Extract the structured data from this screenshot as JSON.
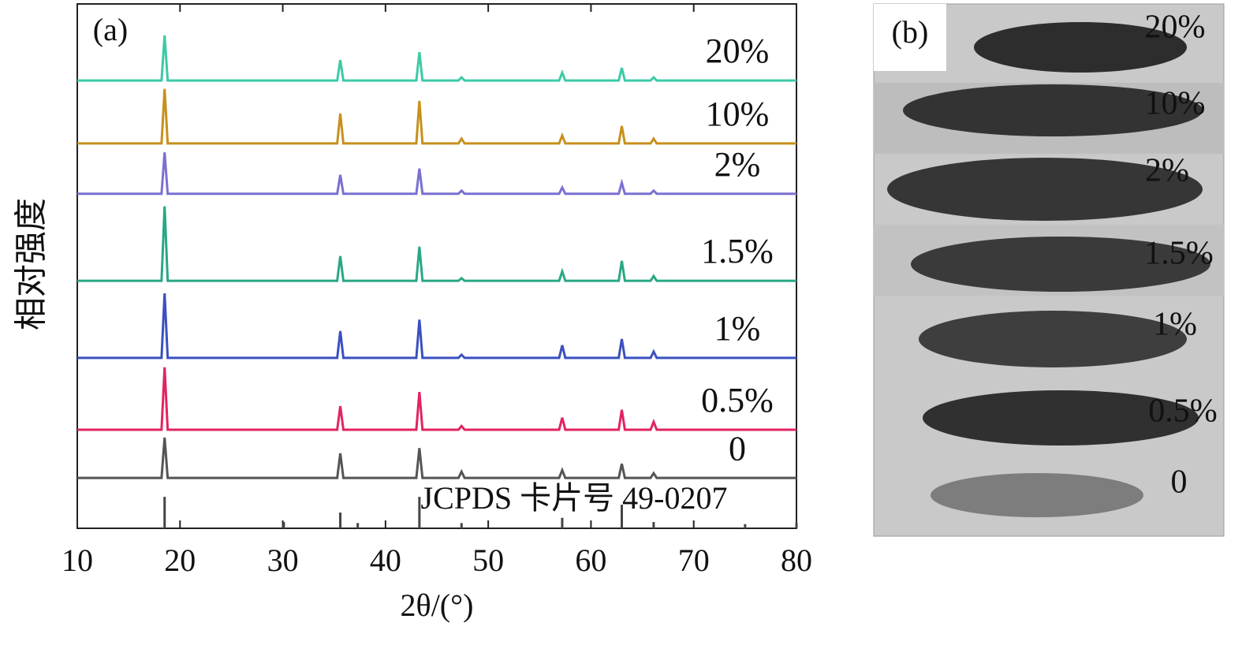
{
  "chart_data": {
    "type": "line",
    "panel_label": "(a)",
    "ylabel": "相对强度",
    "xlabel": "2θ/(°)",
    "xlim": [
      10,
      80
    ],
    "xticks": [
      10,
      20,
      30,
      40,
      50,
      60,
      70,
      80
    ],
    "ylim": [
      0,
      100
    ],
    "x": [
      10,
      18.2,
      18.5,
      18.8,
      35.3,
      35.6,
      35.9,
      43.0,
      43.3,
      43.6,
      47.1,
      47.4,
      47.7,
      56.9,
      57.2,
      57.5,
      62.7,
      63.0,
      63.3,
      65.8,
      66.1,
      66.4,
      80
    ],
    "series": [
      {
        "name": "20%",
        "color": "#3ec9a7",
        "values": [
          85.4,
          85.4,
          94.0,
          85.4,
          85.4,
          89.3,
          85.4,
          85.4,
          90.8,
          85.4,
          85.4,
          86.0,
          85.4,
          85.4,
          86.9,
          85.4,
          85.4,
          87.8,
          85.4,
          85.4,
          86.0,
          85.4,
          85.4
        ]
      },
      {
        "name": "10%",
        "color": "#c8901c",
        "values": [
          73.4,
          73.4,
          83.8,
          73.4,
          73.4,
          79.1,
          73.4,
          73.4,
          81.5,
          73.4,
          73.4,
          74.3,
          73.4,
          73.4,
          74.9,
          73.4,
          73.4,
          76.7,
          73.4,
          73.4,
          74.3,
          73.4,
          73.4
        ]
      },
      {
        "name": "2%",
        "color": "#7a70d2",
        "values": [
          63.8,
          63.8,
          71.7,
          63.8,
          63.8,
          67.4,
          63.8,
          63.8,
          68.6,
          63.8,
          63.8,
          64.4,
          63.8,
          63.8,
          65.0,
          63.8,
          63.8,
          65.9,
          63.8,
          63.8,
          64.4,
          63.8,
          63.8
        ]
      },
      {
        "name": "1.5%",
        "color": "#2aa785",
        "values": [
          47.2,
          47.2,
          61.4,
          47.2,
          47.2,
          51.9,
          47.2,
          47.2,
          53.7,
          47.2,
          47.2,
          47.7,
          47.2,
          47.2,
          49.0,
          47.2,
          47.2,
          51.0,
          47.2,
          47.2,
          48.1,
          47.2,
          47.2
        ]
      },
      {
        "name": "1%",
        "color": "#3b50c0",
        "values": [
          32.5,
          32.5,
          44.8,
          32.5,
          32.5,
          37.6,
          32.5,
          32.5,
          39.8,
          32.5,
          32.5,
          33.1,
          32.5,
          32.5,
          34.9,
          32.5,
          32.5,
          36.1,
          32.5,
          32.5,
          33.7,
          32.5,
          32.5
        ]
      },
      {
        "name": "0.5%",
        "color": "#e2245f",
        "values": [
          18.8,
          18.8,
          30.7,
          18.8,
          18.8,
          23.3,
          18.8,
          18.8,
          26.0,
          18.8,
          18.8,
          19.5,
          18.8,
          18.8,
          21.1,
          18.8,
          18.8,
          22.6,
          18.8,
          18.8,
          20.3,
          18.8,
          18.8
        ]
      },
      {
        "name": "0",
        "color": "#555555",
        "values": [
          9.6,
          9.6,
          17.3,
          9.6,
          9.6,
          14.3,
          9.6,
          9.6,
          15.3,
          9.6,
          9.6,
          10.8,
          9.6,
          9.6,
          11.1,
          9.6,
          9.6,
          12.3,
          9.6,
          9.6,
          10.5,
          9.6,
          9.6
        ]
      }
    ],
    "reference": {
      "name": "JCPDS 卡片号 49-0207",
      "color": "#444444",
      "x": [
        18.5,
        30.1,
        35.6,
        37.3,
        43.3,
        47.4,
        57.2,
        63.0,
        66.1,
        75.0,
        80.0
      ],
      "values": [
        6.0,
        1.2,
        3.0,
        1.0,
        6.0,
        1.0,
        2.0,
        4.5,
        1.2,
        0.8,
        1.0
      ]
    }
  },
  "panel_b": {
    "label": "(b)",
    "labels": [
      "20%",
      "10%",
      "2%",
      "1.5%",
      "1%",
      "0.5%",
      "0"
    ]
  }
}
